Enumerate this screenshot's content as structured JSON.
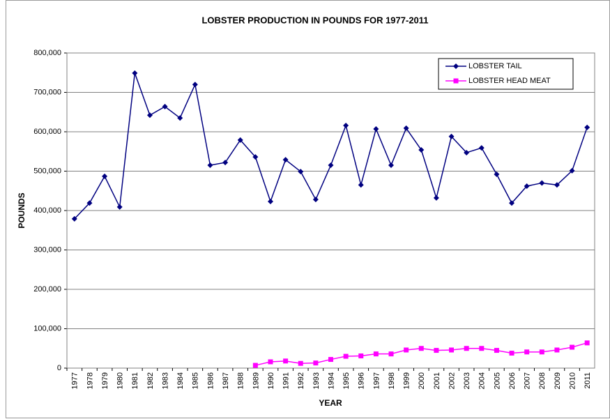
{
  "chart_data": {
    "type": "line",
    "title": "LOBSTER PRODUCTION IN POUNDS FOR 1977-2011",
    "x_label": "YEAR",
    "y_label": "POUNDS",
    "categories": [
      "1977",
      "1978",
      "1979",
      "1980",
      "1981",
      "1982",
      "1983",
      "1984",
      "1985",
      "1986",
      "1987",
      "1988",
      "1989",
      "1990",
      "1991",
      "1992",
      "1993",
      "1994",
      "1995",
      "1996",
      "1997",
      "1998",
      "1999",
      "2000",
      "2001",
      "2002",
      "2003",
      "2004",
      "2005",
      "2006",
      "2007",
      "2008",
      "2009",
      "2010",
      "2011"
    ],
    "series": [
      {
        "name": "LOBSTER TAIL",
        "color": "#000080",
        "marker": "diamond",
        "values": [
          379000,
          419000,
          487000,
          409000,
          749000,
          642000,
          664000,
          635000,
          720000,
          515000,
          522000,
          579000,
          536000,
          423000,
          529000,
          499000,
          428000,
          515000,
          616000,
          465000,
          607000,
          515000,
          609000,
          554000,
          432000,
          588000,
          547000,
          559000,
          492000,
          419000,
          462000,
          470000,
          465000,
          501000,
          611000
        ]
      },
      {
        "name": "LOBSTER HEAD MEAT",
        "color": "#ff00ff",
        "marker": "square",
        "values": [
          null,
          null,
          null,
          null,
          null,
          null,
          null,
          null,
          null,
          null,
          null,
          null,
          7000,
          16000,
          18000,
          12000,
          13000,
          22000,
          30000,
          31000,
          36000,
          36000,
          46000,
          50000,
          45000,
          46000,
          50000,
          50000,
          45000,
          38000,
          41000,
          41000,
          46000,
          53000,
          64000
        ]
      }
    ],
    "ylim": [
      0,
      800000
    ],
    "yticks": [
      0,
      {
        "value": 100000,
        "label": "100,000"
      },
      {
        "value": 200000,
        "label": "200,000"
      },
      {
        "value": 300000,
        "label": "300,000"
      },
      {
        "value": 400000,
        "label": "400,000"
      },
      {
        "value": 500000,
        "label": "500,000"
      },
      {
        "value": 600000,
        "label": "600,000"
      },
      {
        "value": 700000,
        "label": "700,000"
      },
      {
        "value": 800000,
        "label": "800,000"
      }
    ],
    "grid": true,
    "legend": "top-right"
  }
}
